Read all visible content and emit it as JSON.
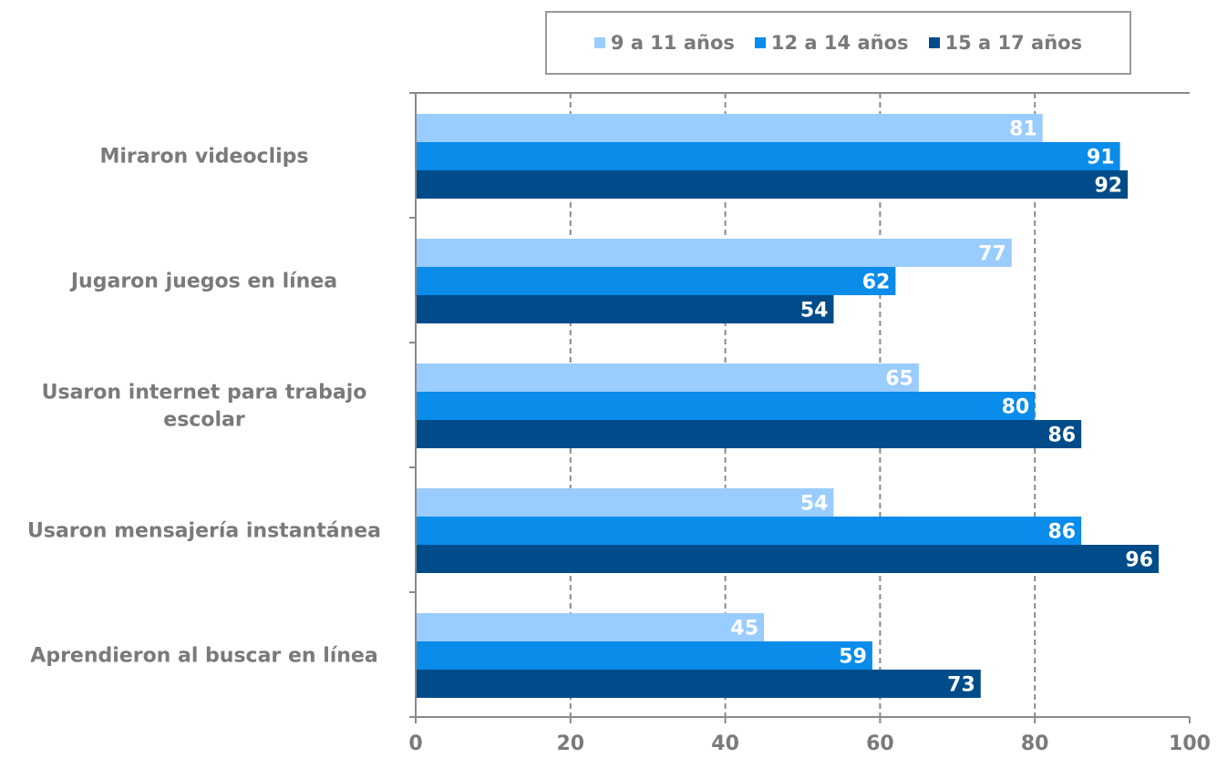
{
  "chart_data": {
    "type": "bar",
    "orientation": "horizontal",
    "categories": [
      "Miraron videoclips",
      "Jugaron juegos en línea",
      "Usaron internet para trabajo escolar",
      "Usaron mensajería instantánea",
      "Aprendieron al buscar en línea"
    ],
    "series": [
      {
        "name": "9 a 11 años",
        "color": "#99CCFF",
        "values": [
          81,
          77,
          65,
          54,
          45
        ]
      },
      {
        "name": "12 a 14 años",
        "color": "#0A8CEB",
        "values": [
          91,
          62,
          80,
          86,
          59
        ]
      },
      {
        "name": "15 a 17 años",
        "color": "#004C8A",
        "values": [
          92,
          54,
          86,
          96,
          73
        ]
      }
    ],
    "xticks": [
      "0",
      "20",
      "40",
      "60",
      "80",
      "100"
    ],
    "xlim": [
      0,
      100
    ],
    "grid": "vertical dashed",
    "legend_position": "top-right",
    "data_labels": true
  }
}
